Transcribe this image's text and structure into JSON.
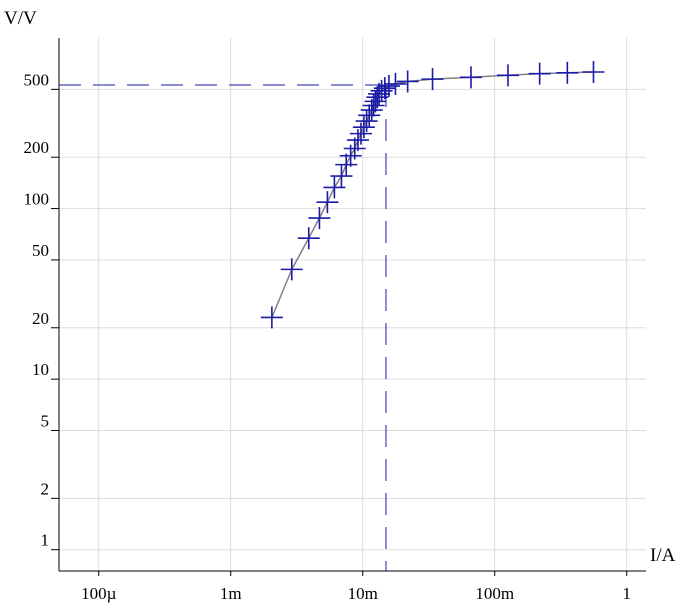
{
  "chart_data": {
    "type": "scatter",
    "xlabel": "I/A",
    "ylabel": "V/V",
    "x_scale": "log",
    "y_scale": "log",
    "xlim": [
      5e-05,
      1.4
    ],
    "ylim": [
      0.75,
      1000
    ],
    "grid": true,
    "x_ticks": [
      {
        "value": 0.0001,
        "label": "100µ"
      },
      {
        "value": 0.001,
        "label": "1m"
      },
      {
        "value": 0.01,
        "label": "10m"
      },
      {
        "value": 0.1,
        "label": "100m"
      },
      {
        "value": 1,
        "label": "1"
      }
    ],
    "y_ticks": [
      {
        "value": 1,
        "label": "1"
      },
      {
        "value": 2,
        "label": "2"
      },
      {
        "value": 5,
        "label": "5"
      },
      {
        "value": 10,
        "label": "10"
      },
      {
        "value": 20,
        "label": "20"
      },
      {
        "value": 50,
        "label": "50"
      },
      {
        "value": 100,
        "label": "100"
      },
      {
        "value": 200,
        "label": "200"
      },
      {
        "value": 500,
        "label": "500"
      }
    ],
    "reference_lines": {
      "horizontal_y": 530,
      "vertical_x": 0.015
    },
    "series": [
      {
        "marker": "plus",
        "color": "#1a1aa6",
        "line_color": "#808080",
        "points": [
          [
            0.00205,
            23
          ],
          [
            0.0029,
            44
          ],
          [
            0.0039,
            67
          ],
          [
            0.0047,
            88
          ],
          [
            0.0054,
            109
          ],
          [
            0.0061,
            133
          ],
          [
            0.0069,
            155
          ],
          [
            0.0075,
            181
          ],
          [
            0.0081,
            204
          ],
          [
            0.0087,
            225
          ],
          [
            0.0092,
            252
          ],
          [
            0.0097,
            275
          ],
          [
            0.0102,
            300
          ],
          [
            0.0107,
            326
          ],
          [
            0.0112,
            352
          ],
          [
            0.0117,
            378
          ],
          [
            0.0121,
            402
          ],
          [
            0.0125,
            425
          ],
          [
            0.0129,
            450
          ],
          [
            0.0133,
            470
          ],
          [
            0.0139,
            490
          ],
          [
            0.0147,
            508
          ],
          [
            0.0158,
            523
          ],
          [
            0.0177,
            538
          ],
          [
            0.0219,
            556
          ],
          [
            0.0338,
            574
          ],
          [
            0.0661,
            588
          ],
          [
            0.126,
            604
          ],
          [
            0.219,
            618
          ],
          [
            0.355,
            625
          ],
          [
            0.56,
            632
          ]
        ]
      }
    ]
  }
}
